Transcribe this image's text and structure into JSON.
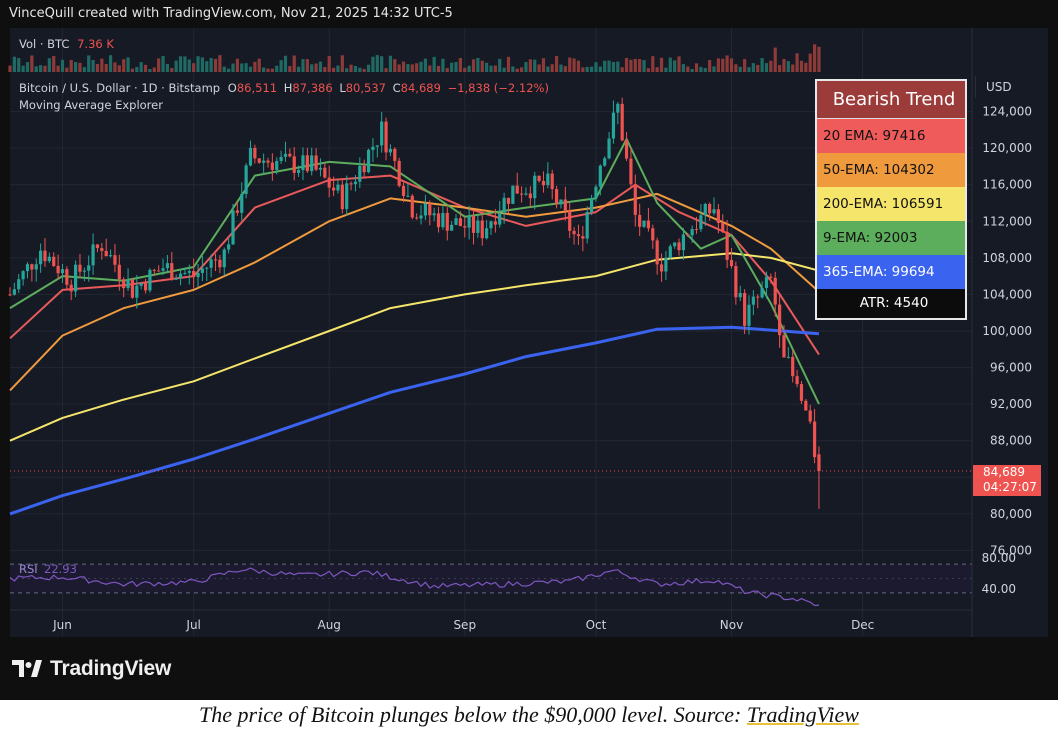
{
  "header": {
    "credit": "VinceQuill created with TradingView.com, Nov 21, 2025 14:32 UTC-5"
  },
  "volume": {
    "label": "Vol · BTC",
    "value": "7.36 K"
  },
  "legend": {
    "symbol": "Bitcoin / U.S. Dollar · 1D · Bitstamp",
    "o_label": "O",
    "o": "86,511",
    "h_label": "H",
    "h": "87,386",
    "l_label": "L",
    "l": "80,537",
    "c_label": "C",
    "c": "84,689",
    "change": "−1,838 (−2.12%)",
    "indicator": "Moving Average Explorer"
  },
  "trend_box": {
    "title": "Bearish Trend",
    "rows": [
      {
        "text": "20 EMA: 97416",
        "color": "#ef5b5b"
      },
      {
        "text": "50-EMA: 104302",
        "color": "#f09a3e"
      },
      {
        "text": "200-EMA: 106591",
        "color": "#f5e56b"
      },
      {
        "text": "9-EMA: 92003",
        "color": "#5cae5c"
      },
      {
        "text": "365-EMA: 99694",
        "color": "#3a63f0"
      }
    ],
    "atr": "ATR: 4540"
  },
  "currency": "USD",
  "price_tag": {
    "price": "84,689",
    "countdown": "04:27:07",
    "color": "#ef5350"
  },
  "rsi": {
    "label": "RSI",
    "value": "22.93",
    "color": "#7e57c2",
    "upper": "80.00",
    "lower": "40.00"
  },
  "brand": "TradingView",
  "caption": {
    "text": "The price of Bitcoin plunges below the $90,000 level. Source: ",
    "source": "TradingView"
  },
  "chart_data": {
    "type": "line",
    "title": "Bitcoin / U.S. Dollar · 1D · Bitstamp",
    "y_ticks": [
      76000,
      80000,
      84000,
      88000,
      92000,
      96000,
      100000,
      104000,
      108000,
      112000,
      116000,
      120000,
      124000
    ],
    "y_tick_labels": [
      "76,000",
      "80,000",
      "84,000",
      "88,000",
      "92,000",
      "96,000",
      "100,000",
      "104,000",
      "108,000",
      "112,000",
      "116,000",
      "120,000",
      "124,000"
    ],
    "ylim": [
      75500,
      128000
    ],
    "x_labels": [
      "Jun",
      "Jul",
      "Aug",
      "Sep",
      "Oct",
      "Nov",
      "Dec"
    ],
    "x_range": [
      "2025-05-20",
      "2025-12-26"
    ],
    "grid": true,
    "price": {
      "x": [
        "2025-05-20",
        "2025-05-27",
        "2025-06-03",
        "2025-06-10",
        "2025-06-17",
        "2025-06-24",
        "2025-07-01",
        "2025-07-08",
        "2025-07-14",
        "2025-07-20",
        "2025-07-28",
        "2025-08-04",
        "2025-08-13",
        "2025-08-20",
        "2025-08-28",
        "2025-09-05",
        "2025-09-12",
        "2025-09-20",
        "2025-09-27",
        "2025-10-02",
        "2025-10-06",
        "2025-10-10",
        "2025-10-16",
        "2025-10-22",
        "2025-10-28",
        "2025-11-04",
        "2025-11-10",
        "2025-11-14",
        "2025-11-18",
        "2025-11-21"
      ],
      "values": [
        104000,
        109000,
        105500,
        109500,
        104500,
        107000,
        106000,
        108500,
        119000,
        118500,
        118000,
        114500,
        122000,
        113500,
        112000,
        111000,
        115500,
        116000,
        109500,
        118500,
        124500,
        112500,
        107500,
        111000,
        113500,
        101500,
        105500,
        96000,
        91000,
        84689
      ]
    },
    "series": [
      {
        "name": "20 EMA",
        "color": "#e85a5a",
        "x": [
          "2025-05-20",
          "2025-06-01",
          "2025-06-15",
          "2025-07-01",
          "2025-07-15",
          "2025-08-01",
          "2025-08-15",
          "2025-09-01",
          "2025-09-15",
          "2025-10-01",
          "2025-10-10",
          "2025-10-20",
          "2025-11-01",
          "2025-11-10",
          "2025-11-21"
        ],
        "values": [
          99200,
          104500,
          105000,
          106000,
          113500,
          116500,
          117000,
          113500,
          111500,
          113000,
          116000,
          113000,
          110500,
          105500,
          97416
        ]
      },
      {
        "name": "50-EMA",
        "color": "#f09a3e",
        "x": [
          "2025-05-20",
          "2025-06-01",
          "2025-06-15",
          "2025-07-01",
          "2025-07-15",
          "2025-08-01",
          "2025-08-15",
          "2025-09-01",
          "2025-09-15",
          "2025-10-01",
          "2025-10-15",
          "2025-11-01",
          "2025-11-10",
          "2025-11-21"
        ],
        "values": [
          93500,
          99500,
          102500,
          104500,
          107500,
          112000,
          114500,
          113500,
          112500,
          113500,
          115000,
          111500,
          109000,
          104302
        ]
      },
      {
        "name": "200-EMA",
        "color": "#f5e56b",
        "x": [
          "2025-05-20",
          "2025-06-01",
          "2025-06-15",
          "2025-07-01",
          "2025-07-15",
          "2025-08-01",
          "2025-08-15",
          "2025-09-01",
          "2025-09-15",
          "2025-10-01",
          "2025-10-15",
          "2025-11-01",
          "2025-11-10",
          "2025-11-21"
        ],
        "values": [
          88000,
          90500,
          92500,
          94500,
          97000,
          100000,
          102500,
          104000,
          105000,
          106000,
          107800,
          108500,
          108000,
          106591
        ]
      },
      {
        "name": "9-EMA",
        "color": "#5cae5c",
        "x": [
          "2025-05-20",
          "2025-06-01",
          "2025-06-15",
          "2025-07-01",
          "2025-07-15",
          "2025-08-01",
          "2025-08-15",
          "2025-09-01",
          "2025-09-15",
          "2025-10-01",
          "2025-10-08",
          "2025-10-15",
          "2025-10-25",
          "2025-11-01",
          "2025-11-10",
          "2025-11-21"
        ],
        "values": [
          102500,
          106000,
          105500,
          107000,
          117000,
          118500,
          118000,
          112500,
          113500,
          114500,
          121000,
          114000,
          109000,
          110500,
          103000,
          92003
        ]
      },
      {
        "name": "365-EMA",
        "color": "#3a63f0",
        "x": [
          "2025-05-20",
          "2025-06-01",
          "2025-06-15",
          "2025-07-01",
          "2025-07-15",
          "2025-08-01",
          "2025-08-15",
          "2025-09-01",
          "2025-09-15",
          "2025-10-01",
          "2025-10-15",
          "2025-11-01",
          "2025-11-10",
          "2025-11-21"
        ],
        "values": [
          80000,
          82000,
          83800,
          86000,
          88200,
          91000,
          93300,
          95300,
          97200,
          98700,
          100200,
          100400,
          100100,
          99694
        ]
      }
    ],
    "rsi_series": {
      "x": [
        "2025-05-20",
        "2025-06-01",
        "2025-06-15",
        "2025-07-01",
        "2025-07-12",
        "2025-07-25",
        "2025-08-10",
        "2025-08-25",
        "2025-09-10",
        "2025-09-25",
        "2025-10-05",
        "2025-10-15",
        "2025-10-28",
        "2025-11-05",
        "2025-11-15",
        "2025-11-21"
      ],
      "values": [
        60,
        62,
        52,
        55,
        73,
        64,
        69,
        49,
        52,
        56,
        71,
        52,
        58,
        40,
        32,
        22.93
      ]
    }
  }
}
